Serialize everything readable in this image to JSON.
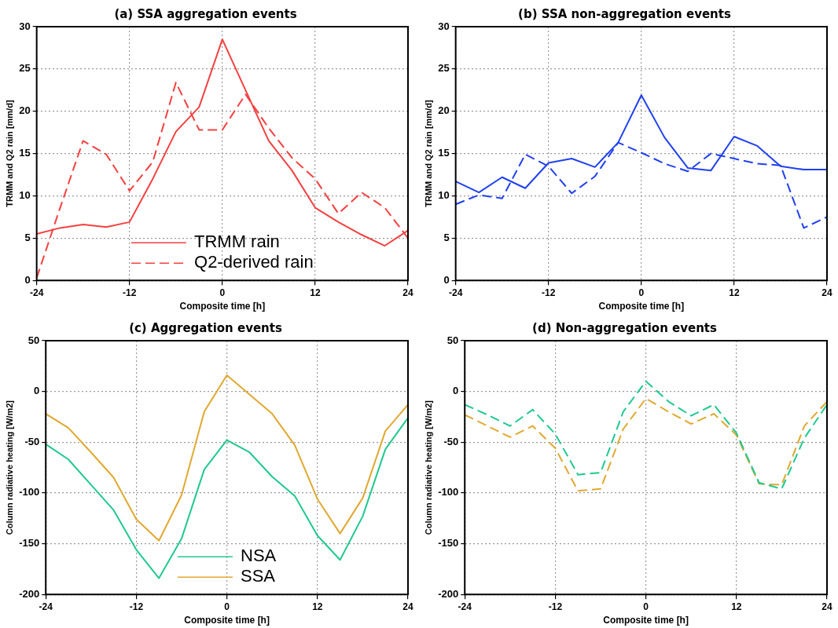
{
  "chart_data": [
    {
      "type": "line",
      "title": "(a) SSA aggregation events",
      "xlabel": "Composite time [h]",
      "ylabel": "TRMM and Q2 rain [mm/d]",
      "x": [
        -24,
        -21,
        -18,
        -15,
        -12,
        -9,
        -6,
        -3,
        0,
        3,
        6,
        9,
        12,
        15,
        18,
        21,
        24
      ],
      "xlim": [
        -24,
        24
      ],
      "xticks": [
        -24,
        -12,
        0,
        12,
        24
      ],
      "ylim": [
        0,
        30
      ],
      "yticks": [
        0,
        5,
        10,
        15,
        20,
        25,
        30
      ],
      "grid": true,
      "legend": "bottom",
      "marker": "none",
      "series": [
        {
          "name": "TRMM rain",
          "color": "#f44040",
          "line_style": "solid",
          "values": [
            5.5,
            6.2,
            6.6,
            6.3,
            6.9,
            12,
            17.6,
            20.5,
            28.5,
            22.5,
            16.5,
            13,
            8.6,
            6.9,
            5.4,
            4.1,
            5.9
          ]
        },
        {
          "name": "Q2-derived rain",
          "color": "#f44040",
          "line_style": "dashed",
          "values": [
            0.3,
            8.5,
            16.5,
            14.9,
            10.6,
            14,
            23.4,
            17.8,
            17.8,
            22,
            18,
            14.5,
            12,
            7.9,
            10.4,
            8.6,
            5
          ]
        }
      ]
    },
    {
      "type": "line",
      "title": "(b) SSA non-aggregation events",
      "xlabel": "Composite time [h]",
      "ylabel": "TRMM and Q2 rain [mm/d]",
      "x": [
        -24,
        -21,
        -18,
        -15,
        -12,
        -9,
        -6,
        -3,
        0,
        3,
        6,
        9,
        12,
        15,
        18,
        21,
        24
      ],
      "xlim": [
        -24,
        24
      ],
      "xticks": [
        -24,
        -12,
        0,
        12,
        24
      ],
      "ylim": [
        0,
        30
      ],
      "yticks": [
        0,
        5,
        10,
        15,
        20,
        25,
        30
      ],
      "grid": true,
      "marker": "none",
      "series": [
        {
          "color": "#2040f0",
          "line_style": "solid",
          "values": [
            11.7,
            10.4,
            12.2,
            10.9,
            13.9,
            14.4,
            13.4,
            16.3,
            21.9,
            16.9,
            13.3,
            13,
            17,
            15.9,
            13.5,
            13.1,
            13.1
          ]
        },
        {
          "color": "#2040f0",
          "line_style": "dashed",
          "values": [
            9,
            10.1,
            9.7,
            14.9,
            13.5,
            10.3,
            12.3,
            16.3,
            15.1,
            13.8,
            12.9,
            15,
            14.4,
            13.8,
            13.6,
            6.2,
            7.5
          ]
        }
      ]
    },
    {
      "type": "line",
      "title": "(c) Aggregation events",
      "xlabel": "Composite time [h]",
      "ylabel": "Column radiative heating [W/m2]",
      "x": [
        -24,
        -21,
        -18,
        -15,
        -12,
        -9,
        -6,
        -3,
        0,
        3,
        6,
        9,
        12,
        15,
        18,
        21,
        24
      ],
      "xlim": [
        -24,
        24
      ],
      "xticks": [
        -24,
        -12,
        0,
        12,
        24
      ],
      "ylim": [
        -200,
        50
      ],
      "yticks": [
        -200,
        -150,
        -100,
        -50,
        0,
        50
      ],
      "grid": true,
      "legend": "bottom",
      "marker": "none",
      "series": [
        {
          "name": "NSA",
          "color": "#20c890",
          "line_style": "solid",
          "values": [
            -52,
            -67,
            -92,
            -117,
            -156,
            -184,
            -145,
            -77,
            -48,
            -60,
            -84,
            -103,
            -142,
            -166,
            -123,
            -57,
            -26
          ]
        },
        {
          "name": "SSA",
          "color": "#e0a830",
          "line_style": "solid",
          "values": [
            -22,
            -36,
            -60,
            -85,
            -126,
            -147,
            -102,
            -20,
            16,
            -3,
            -22,
            -53,
            -106,
            -140,
            -105,
            -39,
            -13
          ]
        }
      ]
    },
    {
      "type": "line",
      "title": "(d) Non-aggregation events",
      "xlabel": "Composite time [h]",
      "ylabel": "Column radiative heating [W/m2]",
      "x": [
        -24,
        -21,
        -18,
        -15,
        -12,
        -9,
        -6,
        -3,
        0,
        3,
        6,
        9,
        12,
        15,
        18,
        21,
        24
      ],
      "xlim": [
        -24,
        24
      ],
      "xticks": [
        -24,
        -12,
        0,
        12,
        24
      ],
      "ylim": [
        -200,
        50
      ],
      "yticks": [
        -200,
        -150,
        -100,
        -50,
        0,
        50
      ],
      "grid": true,
      "marker": "none",
      "series": [
        {
          "color": "#20c890",
          "line_style": "dashed",
          "values": [
            -13,
            -23,
            -34,
            -18,
            -42,
            -82,
            -80,
            -20,
            10,
            -10,
            -24,
            -13,
            -41,
            -90,
            -96,
            -46,
            -13
          ]
        },
        {
          "color": "#e0a830",
          "line_style": "dashed",
          "values": [
            -23,
            -34,
            -45,
            -34,
            -56,
            -98,
            -96,
            -37,
            -7,
            -20,
            -32,
            -22,
            -43,
            -91,
            -92,
            -34,
            -10
          ]
        }
      ]
    }
  ]
}
